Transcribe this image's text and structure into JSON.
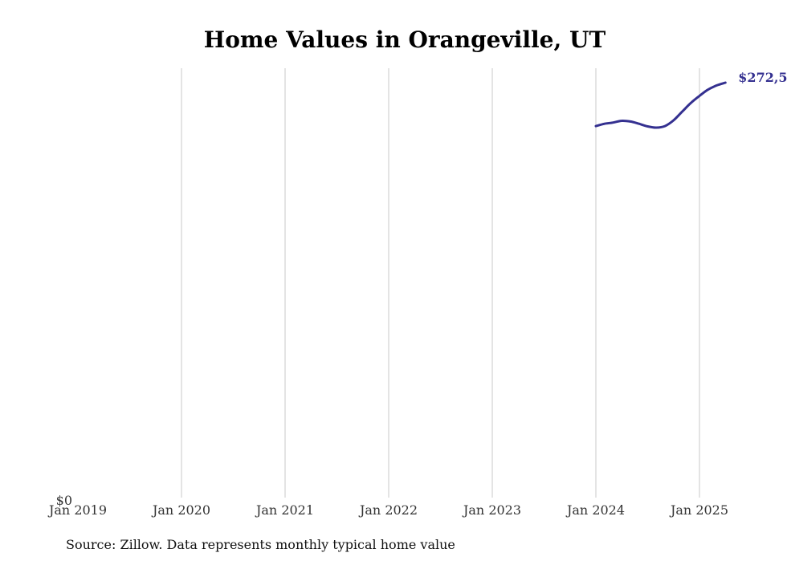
{
  "chart_data": {
    "type": "line",
    "title": "Home Values in Orangeville, UT",
    "xlabel": "",
    "ylabel": "",
    "x_tick_labels": [
      "Jan 2019",
      "Jan 2020",
      "Jan 2021",
      "Jan 2022",
      "Jan 2023",
      "Jan 2024",
      "Jan 2025"
    ],
    "y_tick_labels": [
      "$0"
    ],
    "ylim": [
      0,
      282000
    ],
    "xlim": [
      "2019-01",
      "2025-05"
    ],
    "grid": {
      "vertical": true,
      "horizontal": false
    },
    "legend": "none",
    "end_label": "$272,5",
    "series": [
      {
        "color": "#343090",
        "points": [
          {
            "x": "2024-01",
            "y": 244000
          },
          {
            "x": "2024-02",
            "y": 245500
          },
          {
            "x": "2024-03",
            "y": 246300
          },
          {
            "x": "2024-04",
            "y": 247500
          },
          {
            "x": "2024-05",
            "y": 247000
          },
          {
            "x": "2024-06",
            "y": 245500
          },
          {
            "x": "2024-07",
            "y": 243800
          },
          {
            "x": "2024-08",
            "y": 243000
          },
          {
            "x": "2024-09",
            "y": 244000
          },
          {
            "x": "2024-10",
            "y": 247800
          },
          {
            "x": "2024-11",
            "y": 253500
          },
          {
            "x": "2024-12",
            "y": 259200
          },
          {
            "x": "2025-01",
            "y": 263800
          },
          {
            "x": "2025-02",
            "y": 268000
          },
          {
            "x": "2025-03",
            "y": 270700
          },
          {
            "x": "2025-04",
            "y": 272500
          }
        ]
      }
    ],
    "colors": {
      "line": "#343090",
      "grid": "#c8c8c8",
      "title": "#000000",
      "tick": "#333333"
    }
  },
  "footer": {
    "source": "Source: Zillow. Data represents monthly typical home value"
  }
}
